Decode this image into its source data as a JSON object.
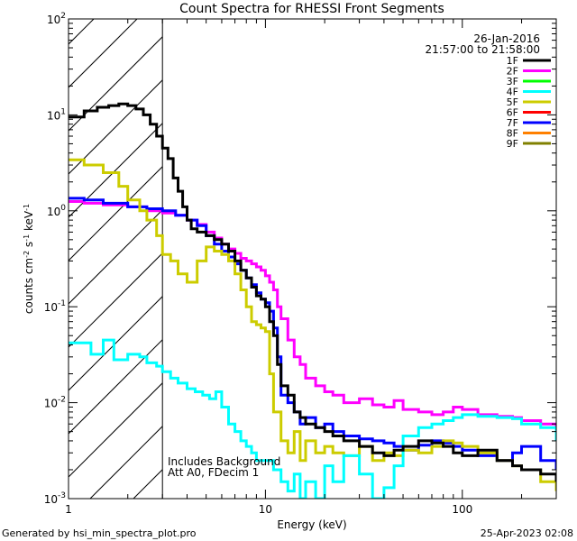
{
  "chart_data": {
    "type": "line",
    "title": "Count Spectra for RHESSI Front Segments",
    "xlabel": "Energy (keV)",
    "ylabel_parts": {
      "a": "counts cm",
      "b": "-2",
      "c": " s",
      "d": "-1",
      "e": " keV",
      "f": "-1"
    },
    "xscale": "log",
    "yscale": "log",
    "xlim": [
      1.0,
      300.0
    ],
    "ylim": [
      0.001,
      100.0
    ],
    "x_ticks": [
      {
        "value": 1,
        "label": "1"
      },
      {
        "value": 10,
        "label": "10"
      },
      {
        "value": 100,
        "label": "100"
      }
    ],
    "y_ticks": [
      {
        "value": 0.001,
        "base": "10",
        "exp": "-3"
      },
      {
        "value": 0.01,
        "base": "10",
        "exp": "-2"
      },
      {
        "value": 0.1,
        "base": "10",
        "exp": "-1"
      },
      {
        "value": 1,
        "base": "10",
        "exp": "0"
      },
      {
        "value": 10,
        "base": "10",
        "exp": "1"
      },
      {
        "value": 100,
        "base": "10",
        "exp": "2"
      }
    ],
    "date_label": "26-Jan-2016",
    "time_label": "21:57:00 to 21:58:00",
    "hatched_region": [
      1.0,
      3.0
    ],
    "annotations": [
      "Includes Background",
      "Att A0, FDecim 1"
    ],
    "legend": [
      {
        "name": "1F",
        "color": "#000000"
      },
      {
        "name": "2F",
        "color": "#ff00ff"
      },
      {
        "name": "3F",
        "color": "#00ff00"
      },
      {
        "name": "4F",
        "color": "#00ffff"
      },
      {
        "name": "5F",
        "color": "#cccc00"
      },
      {
        "name": "6F",
        "color": "#ff0000"
      },
      {
        "name": "7F",
        "color": "#0000ff"
      },
      {
        "name": "8F",
        "color": "#ff8000"
      },
      {
        "name": "9F",
        "color": "#808000"
      }
    ],
    "series": [
      {
        "name": "2F",
        "color": "#ff00ff",
        "x": [
          1.0,
          1.2,
          1.5,
          2.0,
          2.5,
          3.0,
          3.5,
          4.0,
          4.5,
          5.0,
          5.5,
          6.0,
          6.5,
          7.0,
          7.5,
          8.0,
          8.5,
          9.0,
          9.5,
          10,
          10.5,
          11,
          11.5,
          12,
          13,
          14,
          15,
          16,
          18,
          20,
          22,
          25,
          30,
          35,
          40,
          45,
          50,
          60,
          70,
          80,
          90,
          100,
          120,
          150,
          180,
          200,
          250,
          300
        ],
        "y": [
          1.25,
          1.2,
          1.15,
          1.1,
          1.0,
          0.95,
          0.9,
          0.8,
          0.72,
          0.6,
          0.52,
          0.45,
          0.4,
          0.36,
          0.32,
          0.3,
          0.28,
          0.26,
          0.24,
          0.21,
          0.18,
          0.15,
          0.1,
          0.075,
          0.045,
          0.03,
          0.025,
          0.018,
          0.015,
          0.013,
          0.012,
          0.01,
          0.011,
          0.0095,
          0.009,
          0.0105,
          0.0085,
          0.008,
          0.0075,
          0.008,
          0.009,
          0.0085,
          0.0075,
          0.0072,
          0.007,
          0.0065,
          0.006,
          0.005
        ]
      },
      {
        "name": "7F",
        "color": "#0000ff",
        "x": [
          1.0,
          1.2,
          1.5,
          2.0,
          2.5,
          3.0,
          3.5,
          4.0,
          4.5,
          5.0,
          5.5,
          6.0,
          6.5,
          7.0,
          7.5,
          8.0,
          8.5,
          9.0,
          9.5,
          10,
          10.5,
          11,
          11.5,
          12,
          13,
          14,
          15,
          16,
          18,
          20,
          22,
          25,
          30,
          35,
          40,
          45,
          50,
          60,
          70,
          80,
          90,
          100,
          120,
          150,
          180,
          200,
          250,
          300
        ],
        "y": [
          1.35,
          1.3,
          1.2,
          1.1,
          1.05,
          1.0,
          0.9,
          0.8,
          0.7,
          0.55,
          0.45,
          0.38,
          0.33,
          0.28,
          0.24,
          0.2,
          0.17,
          0.14,
          0.12,
          0.11,
          0.09,
          0.06,
          0.03,
          0.012,
          0.01,
          0.008,
          0.006,
          0.007,
          0.0055,
          0.006,
          0.005,
          0.0045,
          0.0042,
          0.004,
          0.0038,
          0.0035,
          0.0032,
          0.0036,
          0.004,
          0.0038,
          0.0035,
          0.0032,
          0.0028,
          0.0025,
          0.003,
          0.0035,
          0.0025,
          0.002
        ]
      },
      {
        "name": "5F",
        "color": "#cccc00",
        "x": [
          1.0,
          1.2,
          1.5,
          1.8,
          2.0,
          2.3,
          2.5,
          2.8,
          3.0,
          3.3,
          3.6,
          4.0,
          4.5,
          5.0,
          5.5,
          6.0,
          6.5,
          7.0,
          7.5,
          8.0,
          8.5,
          9.0,
          9.5,
          10,
          10.5,
          11,
          12,
          13,
          14,
          15,
          16,
          18,
          20,
          22,
          25,
          30,
          35,
          40,
          45,
          50,
          60,
          70,
          80,
          90,
          100,
          120,
          150,
          180,
          200,
          250,
          300
        ],
        "y": [
          3.4,
          3.0,
          2.5,
          1.8,
          1.3,
          1.0,
          0.8,
          0.55,
          0.35,
          0.3,
          0.22,
          0.18,
          0.3,
          0.42,
          0.38,
          0.35,
          0.3,
          0.22,
          0.15,
          0.1,
          0.07,
          0.065,
          0.06,
          0.055,
          0.02,
          0.008,
          0.004,
          0.003,
          0.005,
          0.0025,
          0.004,
          0.003,
          0.0035,
          0.003,
          0.0028,
          0.0035,
          0.0025,
          0.003,
          0.0028,
          0.0032,
          0.003,
          0.0035,
          0.004,
          0.0038,
          0.0035,
          0.003,
          0.0025,
          0.0022,
          0.002,
          0.0015,
          0.0012
        ]
      },
      {
        "name": "4F",
        "color": "#00ffff",
        "x": [
          1.0,
          1.2,
          1.3,
          1.5,
          1.7,
          2.0,
          2.3,
          2.5,
          2.8,
          3.0,
          3.3,
          3.6,
          4.0,
          4.4,
          4.8,
          5.2,
          5.6,
          6.0,
          6.5,
          7.0,
          7.5,
          8.0,
          8.5,
          9.0,
          10,
          11,
          12,
          13,
          14,
          15,
          16,
          18,
          20,
          22,
          25,
          30,
          35,
          40,
          45,
          50,
          60,
          70,
          80,
          90,
          100,
          120,
          150,
          180,
          200,
          250,
          300
        ],
        "y": [
          0.042,
          0.042,
          0.032,
          0.045,
          0.028,
          0.032,
          0.03,
          0.026,
          0.024,
          0.021,
          0.018,
          0.016,
          0.014,
          0.013,
          0.012,
          0.011,
          0.013,
          0.009,
          0.006,
          0.005,
          0.004,
          0.0035,
          0.003,
          0.0025,
          0.0025,
          0.002,
          0.0015,
          0.0012,
          0.0018,
          0.001,
          0.0015,
          0.001,
          0.0022,
          0.0015,
          0.0028,
          0.0018,
          0.001,
          0.0013,
          0.0022,
          0.0045,
          0.0055,
          0.006,
          0.0065,
          0.007,
          0.0075,
          0.0072,
          0.007,
          0.0068,
          0.006,
          0.0055,
          0.004
        ]
      },
      {
        "name": "1F",
        "color": "#000000",
        "x": [
          1.0,
          1.1,
          1.2,
          1.3,
          1.4,
          1.5,
          1.6,
          1.7,
          1.8,
          2.0,
          2.2,
          2.4,
          2.6,
          2.8,
          3.0,
          3.2,
          3.4,
          3.6,
          3.8,
          4.0,
          4.2,
          4.5,
          5.0,
          5.5,
          6.0,
          6.5,
          7.0,
          7.5,
          8.0,
          8.5,
          9.0,
          9.5,
          10,
          10.5,
          11,
          11.5,
          12,
          13,
          14,
          15,
          16,
          18,
          20,
          22,
          25,
          30,
          35,
          40,
          45,
          50,
          60,
          70,
          80,
          90,
          100,
          120,
          150,
          180,
          200,
          250,
          300
        ],
        "y": [
          9.5,
          9.5,
          11,
          11,
          12,
          12,
          12.5,
          12.5,
          13,
          12.5,
          11.5,
          10,
          8,
          6,
          4.5,
          3.5,
          2.2,
          1.6,
          1.1,
          0.8,
          0.65,
          0.6,
          0.55,
          0.5,
          0.45,
          0.38,
          0.3,
          0.24,
          0.2,
          0.16,
          0.13,
          0.12,
          0.1,
          0.07,
          0.05,
          0.025,
          0.015,
          0.012,
          0.008,
          0.007,
          0.006,
          0.0055,
          0.005,
          0.0045,
          0.004,
          0.0035,
          0.003,
          0.0028,
          0.0032,
          0.0035,
          0.004,
          0.0038,
          0.0035,
          0.003,
          0.0028,
          0.0032,
          0.0025,
          0.0022,
          0.002,
          0.0018,
          0.0015
        ]
      }
    ]
  },
  "footer": {
    "left": "Generated by hsi_min_spectra_plot.pro",
    "right": "25-Apr-2023 02:08"
  }
}
